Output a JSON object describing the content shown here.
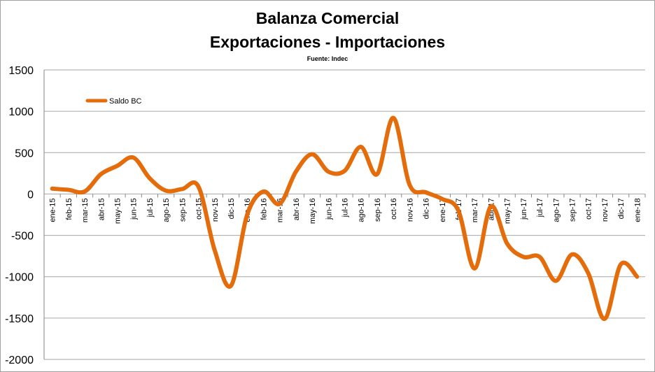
{
  "chart_data": {
    "type": "line",
    "title": [
      "Balanza Comercial",
      "Exportaciones - Importaciones"
    ],
    "subtitle": "Fuente: Indec",
    "xlabel": "",
    "ylabel": "",
    "ylim": [
      -2000,
      1500
    ],
    "yticks": [
      1500,
      1000,
      500,
      0,
      -500,
      -1000,
      -1500,
      -2000
    ],
    "grid": true,
    "legend_position": "top-left",
    "colors": {
      "series": "#e46c0a",
      "grid": "#a6a6a6"
    },
    "categories": [
      "ene-15",
      "feb-15",
      "mar-15",
      "abr-15",
      "may-15",
      "jun-15",
      "jul-15",
      "ago-15",
      "sep-15",
      "oct-15",
      "nov-15",
      "dic-15",
      "ene-16",
      "feb-16",
      "mar-16",
      "abr-16",
      "may-16",
      "jun-16",
      "jul-16",
      "ago-16",
      "sep-16",
      "oct-16",
      "nov-16",
      "dic-16",
      "ene-17",
      "feb-17",
      "mar-17",
      "abr-17",
      "may-17",
      "jun-17",
      "jul-17",
      "ago-17",
      "sep-17",
      "oct-17",
      "nov-17",
      "dic-17",
      "ene-18"
    ],
    "series": [
      {
        "name": "Saldo BC",
        "values": [
          65,
          50,
          30,
          240,
          340,
          440,
          190,
          40,
          60,
          90,
          -680,
          -1110,
          -250,
          30,
          -120,
          270,
          480,
          270,
          280,
          570,
          240,
          920,
          110,
          20,
          -60,
          -200,
          -900,
          -150,
          -600,
          -760,
          -760,
          -1050,
          -730,
          -960,
          -1510,
          -850,
          -1000
        ]
      }
    ]
  }
}
